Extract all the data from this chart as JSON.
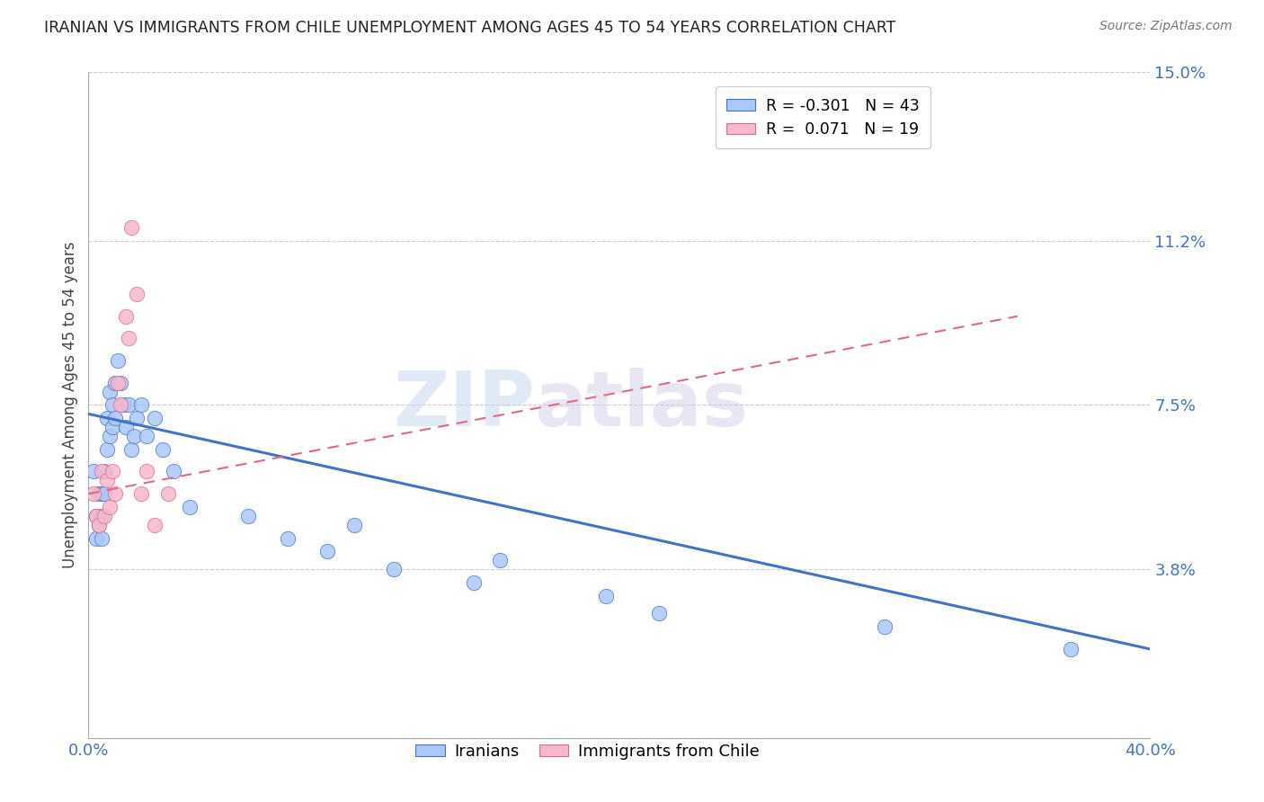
{
  "title": "IRANIAN VS IMMIGRANTS FROM CHILE UNEMPLOYMENT AMONG AGES 45 TO 54 YEARS CORRELATION CHART",
  "source": "Source: ZipAtlas.com",
  "ylabel": "Unemployment Among Ages 45 to 54 years",
  "xlim": [
    0.0,
    0.4
  ],
  "ylim": [
    0.0,
    0.15
  ],
  "yticks": [
    0.038,
    0.075,
    0.112,
    0.15
  ],
  "ytick_labels": [
    "3.8%",
    "7.5%",
    "11.2%",
    "15.0%"
  ],
  "legend_r_ir": "R = -0.301",
  "legend_n_ir": "N = 43",
  "legend_r_ch": "R =  0.071",
  "legend_n_ch": "N = 19",
  "color_iranian": "#aac8f8",
  "color_chile": "#f8b8cc",
  "line_color_iranian": "#4472c4",
  "line_color_chile": "#e06888",
  "watermark_zip": "ZIP",
  "watermark_atlas": "atlas",
  "iranians_x": [
    0.002,
    0.003,
    0.003,
    0.004,
    0.004,
    0.005,
    0.005,
    0.005,
    0.006,
    0.006,
    0.007,
    0.007,
    0.008,
    0.008,
    0.009,
    0.009,
    0.01,
    0.01,
    0.011,
    0.012,
    0.013,
    0.014,
    0.015,
    0.016,
    0.017,
    0.018,
    0.02,
    0.022,
    0.025,
    0.028,
    0.032,
    0.038,
    0.06,
    0.075,
    0.09,
    0.1,
    0.115,
    0.145,
    0.155,
    0.195,
    0.215,
    0.3,
    0.37
  ],
  "iranians_y": [
    0.06,
    0.05,
    0.045,
    0.055,
    0.048,
    0.055,
    0.05,
    0.045,
    0.06,
    0.055,
    0.072,
    0.065,
    0.078,
    0.068,
    0.075,
    0.07,
    0.08,
    0.072,
    0.085,
    0.08,
    0.075,
    0.07,
    0.075,
    0.065,
    0.068,
    0.072,
    0.075,
    0.068,
    0.072,
    0.065,
    0.06,
    0.052,
    0.05,
    0.045,
    0.042,
    0.048,
    0.038,
    0.035,
    0.04,
    0.032,
    0.028,
    0.025,
    0.02
  ],
  "chile_x": [
    0.002,
    0.003,
    0.004,
    0.005,
    0.006,
    0.007,
    0.008,
    0.009,
    0.01,
    0.011,
    0.012,
    0.014,
    0.015,
    0.016,
    0.018,
    0.02,
    0.022,
    0.025,
    0.03
  ],
  "chile_y": [
    0.055,
    0.05,
    0.048,
    0.06,
    0.05,
    0.058,
    0.052,
    0.06,
    0.055,
    0.08,
    0.075,
    0.095,
    0.09,
    0.115,
    0.1,
    0.055,
    0.06,
    0.048,
    0.055
  ],
  "ir_line_x": [
    0.0,
    0.4
  ],
  "ir_line_y": [
    0.073,
    0.02
  ],
  "ch_line_x": [
    0.0,
    0.35
  ],
  "ch_line_y": [
    0.055,
    0.095
  ]
}
